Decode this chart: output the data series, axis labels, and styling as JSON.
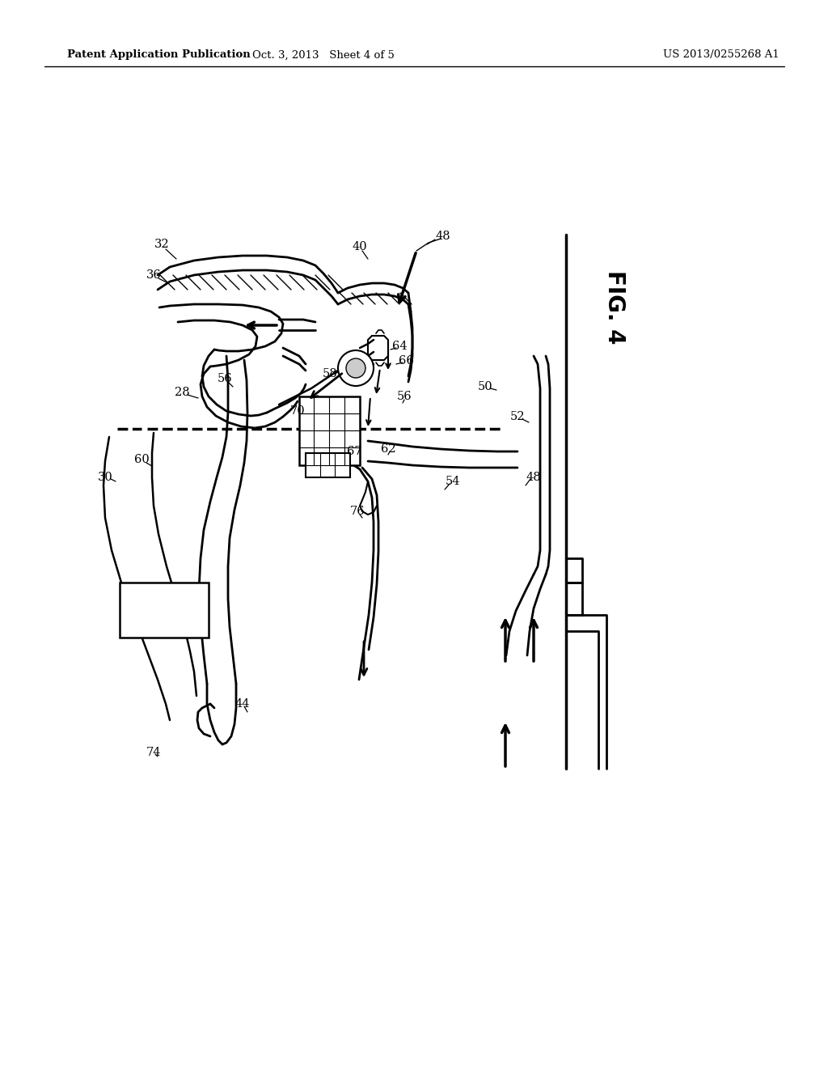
{
  "bg_color": "#ffffff",
  "header_left": "Patent Application Publication",
  "header_center": "Oct. 3, 2013   Sheet 4 of 5",
  "header_right": "US 2013/0255268 A1"
}
